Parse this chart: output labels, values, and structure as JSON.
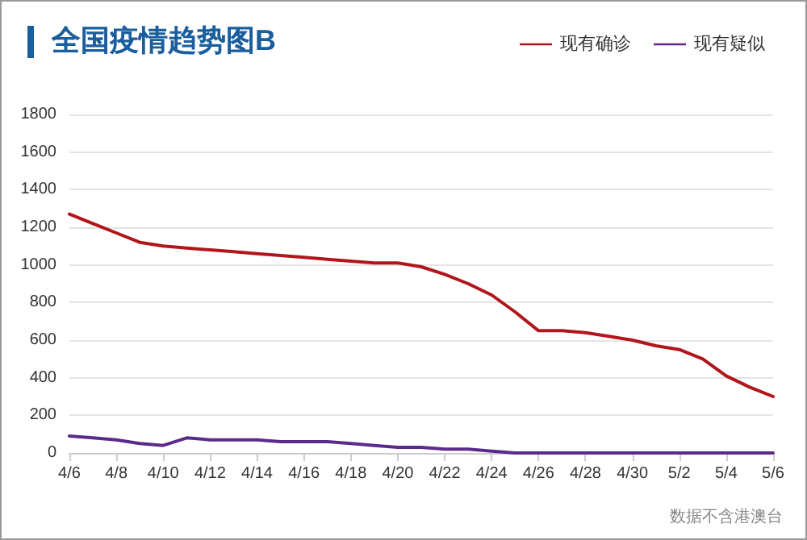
{
  "chart_data": {
    "type": "line",
    "title": "全国疫情趋势图B",
    "annotations": [
      "数据不含港澳台"
    ],
    "categories": [
      "4/6",
      null,
      "4/8",
      null,
      "4/10",
      null,
      "4/12",
      null,
      "4/14",
      null,
      "4/16",
      null,
      "4/18",
      null,
      "4/20",
      null,
      "4/22",
      null,
      "4/24",
      null,
      "4/26",
      null,
      "4/28",
      null,
      "4/30",
      null,
      "5/2",
      null,
      "5/4",
      null,
      "5/6"
    ],
    "series": [
      {
        "name": "现有确诊",
        "color": "#b0161c",
        "values": [
          1270,
          1220,
          1170,
          1120,
          1100,
          1090,
          1080,
          1070,
          1060,
          1050,
          1040,
          1030,
          1020,
          1010,
          1010,
          990,
          950,
          900,
          840,
          750,
          650,
          650,
          640,
          620,
          600,
          570,
          550,
          500,
          410,
          350,
          300
        ]
      },
      {
        "name": "现有疑似",
        "color": "#5b2a8c",
        "values": [
          90,
          80,
          70,
          50,
          40,
          80,
          70,
          70,
          70,
          60,
          60,
          60,
          50,
          40,
          30,
          30,
          20,
          20,
          10,
          0,
          0,
          0,
          0,
          0,
          0,
          0,
          0,
          0,
          0,
          0,
          0
        ]
      }
    ],
    "ylim": [
      0,
      1800
    ],
    "yticks": [
      0,
      200,
      400,
      600,
      800,
      1000,
      1200,
      1400,
      1600,
      1800
    ],
    "grid": "y",
    "legend": "top right",
    "marker": "none",
    "line_style": "solid"
  }
}
